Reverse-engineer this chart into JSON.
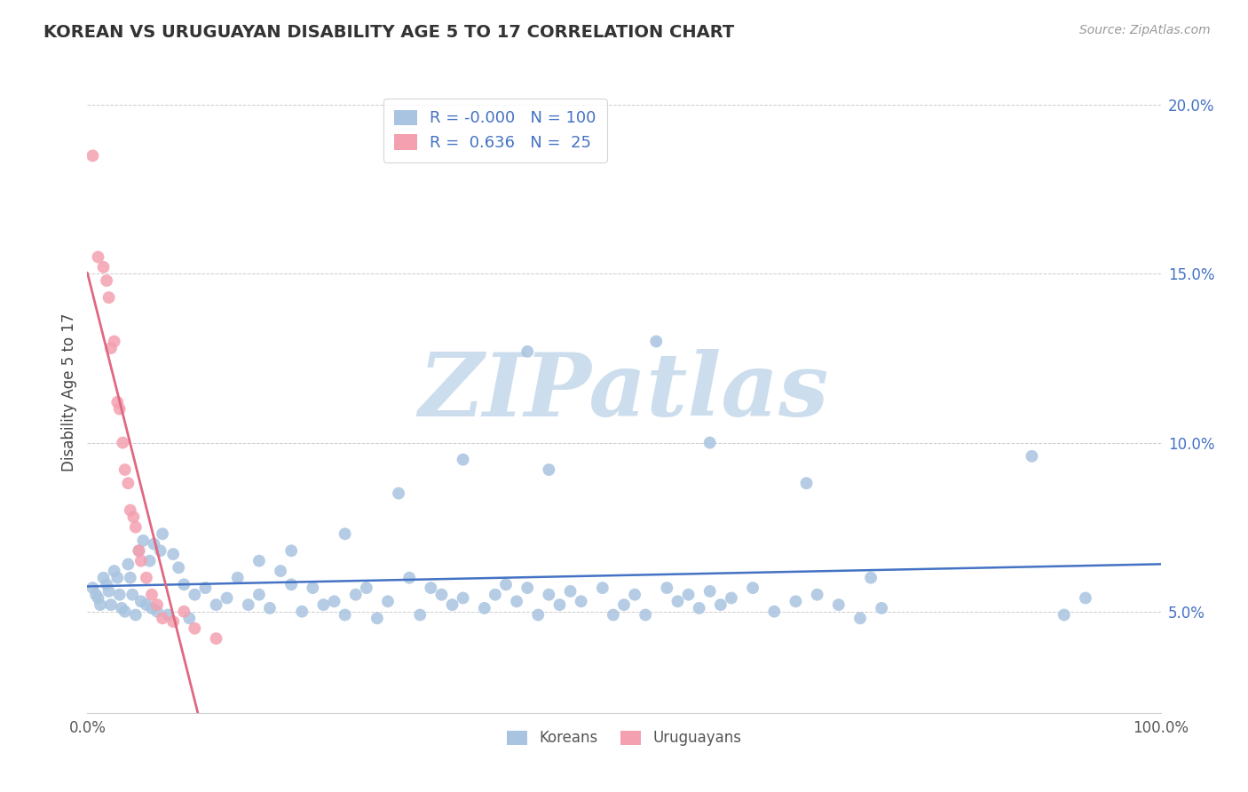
{
  "title": "KOREAN VS URUGUAYAN DISABILITY AGE 5 TO 17 CORRELATION CHART",
  "source_text": "Source: ZipAtlas.com",
  "ylabel": "Disability Age 5 to 17",
  "xlim": [
    0.0,
    1.0
  ],
  "ylim": [
    0.02,
    0.21
  ],
  "yticks": [
    0.05,
    0.1,
    0.15,
    0.2
  ],
  "ytick_labels": [
    "5.0%",
    "10.0%",
    "15.0%",
    "20.0%"
  ],
  "xtick_labels": [
    "0.0%",
    "100.0%"
  ],
  "korean_color": "#a8c4e0",
  "uruguayan_color": "#f4a0b0",
  "korean_trend_color": "#4472c4",
  "uruguayan_trend_color": "#e06880",
  "R_korean": -0.0,
  "N_korean": 100,
  "R_uruguayan": 0.636,
  "N_uruguayan": 25,
  "grid_color": "#cccccc",
  "background_color": "#ffffff",
  "watermark": "ZIPatlas",
  "watermark_color": "#ccdded",
  "legend_label_korean": "Koreans",
  "legend_label_uruguayan": "Uruguayans",
  "korean_x": [
    0.005,
    0.008,
    0.01,
    0.012,
    0.015,
    0.018,
    0.02,
    0.022,
    0.025,
    0.028,
    0.03,
    0.032,
    0.035,
    0.038,
    0.04,
    0.042,
    0.045,
    0.048,
    0.05,
    0.052,
    0.055,
    0.058,
    0.06,
    0.062,
    0.065,
    0.068,
    0.07,
    0.075,
    0.08,
    0.085,
    0.09,
    0.095,
    0.1,
    0.11,
    0.12,
    0.13,
    0.14,
    0.15,
    0.16,
    0.17,
    0.18,
    0.19,
    0.2,
    0.21,
    0.22,
    0.23,
    0.24,
    0.25,
    0.26,
    0.27,
    0.28,
    0.3,
    0.31,
    0.32,
    0.33,
    0.34,
    0.35,
    0.37,
    0.38,
    0.39,
    0.4,
    0.41,
    0.42,
    0.43,
    0.44,
    0.45,
    0.46,
    0.48,
    0.49,
    0.5,
    0.51,
    0.52,
    0.54,
    0.55,
    0.56,
    0.57,
    0.58,
    0.59,
    0.6,
    0.62,
    0.64,
    0.66,
    0.68,
    0.7,
    0.72,
    0.74,
    0.35,
    0.53,
    0.41,
    0.29,
    0.19,
    0.24,
    0.16,
    0.43,
    0.67,
    0.73,
    0.58,
    0.88,
    0.91,
    0.93
  ],
  "korean_y": [
    0.057,
    0.055,
    0.054,
    0.052,
    0.06,
    0.058,
    0.056,
    0.052,
    0.062,
    0.06,
    0.055,
    0.051,
    0.05,
    0.064,
    0.06,
    0.055,
    0.049,
    0.068,
    0.053,
    0.071,
    0.052,
    0.065,
    0.051,
    0.07,
    0.05,
    0.068,
    0.073,
    0.049,
    0.067,
    0.063,
    0.058,
    0.048,
    0.055,
    0.057,
    0.052,
    0.054,
    0.06,
    0.052,
    0.055,
    0.051,
    0.062,
    0.058,
    0.05,
    0.057,
    0.052,
    0.053,
    0.049,
    0.055,
    0.057,
    0.048,
    0.053,
    0.06,
    0.049,
    0.057,
    0.055,
    0.052,
    0.054,
    0.051,
    0.055,
    0.058,
    0.053,
    0.057,
    0.049,
    0.055,
    0.052,
    0.056,
    0.053,
    0.057,
    0.049,
    0.052,
    0.055,
    0.049,
    0.057,
    0.053,
    0.055,
    0.051,
    0.056,
    0.052,
    0.054,
    0.057,
    0.05,
    0.053,
    0.055,
    0.052,
    0.048,
    0.051,
    0.095,
    0.13,
    0.127,
    0.085,
    0.068,
    0.073,
    0.065,
    0.092,
    0.088,
    0.06,
    0.1,
    0.096,
    0.049,
    0.054
  ],
  "uruguayan_x": [
    0.005,
    0.01,
    0.015,
    0.018,
    0.02,
    0.022,
    0.025,
    0.028,
    0.03,
    0.033,
    0.035,
    0.038,
    0.04,
    0.043,
    0.045,
    0.048,
    0.05,
    0.055,
    0.06,
    0.065,
    0.07,
    0.08,
    0.09,
    0.1,
    0.12
  ],
  "uruguayan_y": [
    0.185,
    0.155,
    0.152,
    0.148,
    0.143,
    0.128,
    0.13,
    0.112,
    0.11,
    0.1,
    0.092,
    0.088,
    0.08,
    0.078,
    0.075,
    0.068,
    0.065,
    0.06,
    0.055,
    0.052,
    0.048,
    0.047,
    0.05,
    0.045,
    0.042
  ]
}
